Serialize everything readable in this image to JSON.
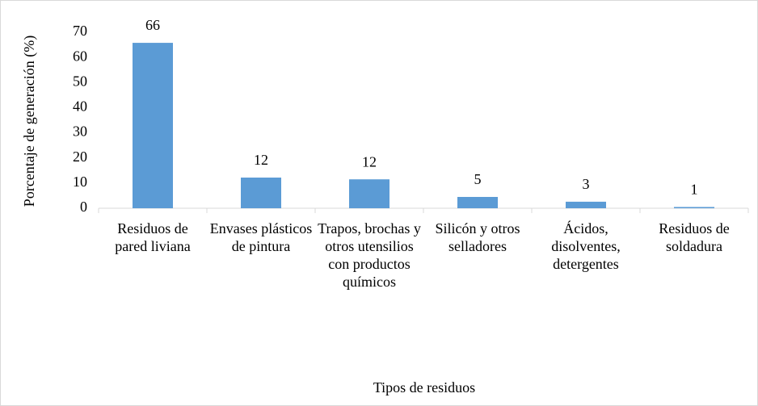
{
  "chart_data": {
    "type": "bar",
    "x_label": "Tipos de residuos",
    "y_label": "Porcentaje de generación (%)",
    "categories": [
      "Residuos de pared liviana",
      "Envases plásticos de pintura",
      "Trapos, brochas y otros utensilios con productos químicos",
      "Silicón y otros selladores",
      "Ácidos, disolventes, detergentes",
      "Residuos de soldadura"
    ],
    "values": [
      65.8,
      12.2,
      11.5,
      4.5,
      2.6,
      0.5
    ],
    "value_labels": [
      "66",
      "12",
      "12",
      "5",
      "3",
      "1"
    ],
    "color": "#5b9bd5",
    "ylim": [
      0,
      70
    ],
    "yticks": [
      0,
      10,
      20,
      30,
      40,
      50,
      60,
      70
    ],
    "grid": false
  }
}
